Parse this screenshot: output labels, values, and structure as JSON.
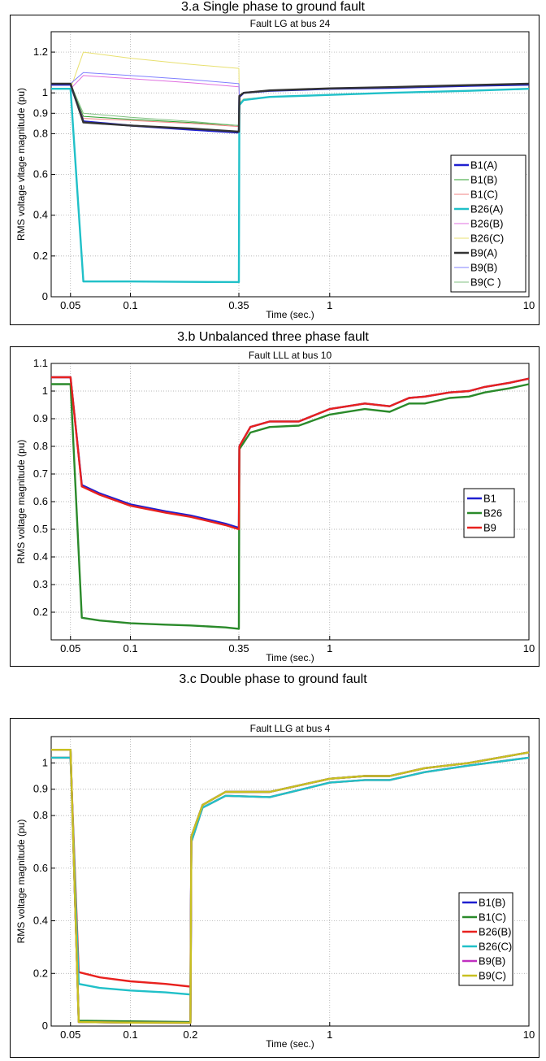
{
  "figure": {
    "caption_a": "3.a Single phase to ground fault",
    "caption_b": "3.b Unbalanced three phase fault",
    "caption_c": "3.c Double phase to ground fault"
  },
  "chart_data": [
    {
      "type": "line",
      "title": "Fault LG at bus 24",
      "xlabel": "Time (sec.)",
      "ylabel": "RMS voltage vltage magnitude (pu)",
      "xscale": "log",
      "xlim": [
        0.04,
        10
      ],
      "ylim": [
        0,
        1.3
      ],
      "xticks": [
        0.05,
        0.1,
        0.35,
        1,
        10
      ],
      "xtick_labels": [
        "0.05",
        "0.1",
        "0.35",
        "1",
        "10"
      ],
      "yticks": [
        0,
        0.2,
        0.4,
        0.6,
        0.8,
        0.9,
        1,
        1.2
      ],
      "ytick_labels": [
        "0",
        "0.2",
        "0.4",
        "0.6",
        "0.8",
        "0.9",
        "1",
        "1.2"
      ],
      "grid": true,
      "legend_position": "right",
      "series": [
        {
          "name": "B1(A)",
          "color": "#1f1fd0",
          "width": 2.4,
          "x": [
            0.04,
            0.05,
            0.058,
            0.1,
            0.2,
            0.35,
            0.352,
            0.37,
            0.5,
            1,
            2,
            5,
            10
          ],
          "y": [
            1.04,
            1.04,
            0.86,
            0.84,
            0.82,
            0.805,
            0.98,
            1.0,
            1.01,
            1.02,
            1.025,
            1.035,
            1.04
          ]
        },
        {
          "name": "B1(B)",
          "color": "#2ca02c",
          "width": 1,
          "x": [
            0.04,
            0.05,
            0.058,
            0.1,
            0.2,
            0.35,
            0.352,
            0.37,
            0.5,
            1,
            2,
            5,
            10
          ],
          "y": [
            1.04,
            1.04,
            0.885,
            0.87,
            0.855,
            0.84,
            0.98,
            1.0,
            1.01,
            1.02,
            1.025,
            1.035,
            1.04
          ]
        },
        {
          "name": "B1(C)",
          "color": "#f08080",
          "width": 1,
          "x": [
            0.04,
            0.05,
            0.058,
            0.1,
            0.2,
            0.35,
            0.352,
            0.37,
            0.5,
            1,
            2,
            5,
            10
          ],
          "y": [
            1.04,
            1.04,
            0.875,
            0.865,
            0.85,
            0.835,
            0.98,
            1.0,
            1.01,
            1.02,
            1.025,
            1.035,
            1.04
          ]
        },
        {
          "name": "B26(A)",
          "color": "#20c0c8",
          "width": 2.4,
          "x": [
            0.04,
            0.05,
            0.058,
            0.1,
            0.2,
            0.35,
            0.352,
            0.37,
            0.5,
            1,
            2,
            5,
            10
          ],
          "y": [
            1.02,
            1.02,
            0.075,
            0.075,
            0.073,
            0.072,
            0.94,
            0.965,
            0.98,
            0.99,
            1.0,
            1.01,
            1.02
          ]
        },
        {
          "name": "B26(B)",
          "color": "#e070e0",
          "width": 1,
          "x": [
            0.04,
            0.05,
            0.058,
            0.1,
            0.2,
            0.35,
            0.352,
            0.37,
            0.5,
            1,
            2,
            5,
            10
          ],
          "y": [
            1.02,
            1.02,
            1.085,
            1.07,
            1.05,
            1.03,
            0.95,
            0.97,
            0.98,
            0.99,
            1.0,
            1.01,
            1.02
          ]
        },
        {
          "name": "B26(C)",
          "color": "#e8e070",
          "width": 1,
          "x": [
            0.04,
            0.05,
            0.058,
            0.1,
            0.2,
            0.35,
            0.352,
            0.37,
            0.5,
            1,
            2,
            5,
            10
          ],
          "y": [
            1.02,
            1.02,
            1.2,
            1.17,
            1.14,
            1.12,
            0.95,
            0.97,
            0.98,
            0.99,
            1.0,
            1.01,
            1.02
          ]
        },
        {
          "name": "B9(A)",
          "color": "#333333",
          "width": 2.4,
          "x": [
            0.04,
            0.05,
            0.058,
            0.1,
            0.2,
            0.35,
            0.352,
            0.37,
            0.5,
            1,
            2,
            5,
            10
          ],
          "y": [
            1.045,
            1.045,
            0.855,
            0.84,
            0.825,
            0.81,
            0.985,
            1.0,
            1.012,
            1.022,
            1.028,
            1.038,
            1.045
          ]
        },
        {
          "name": "B9(B)",
          "color": "#8080ff",
          "width": 1,
          "x": [
            0.04,
            0.05,
            0.058,
            0.1,
            0.2,
            0.35,
            0.352,
            0.37,
            0.5,
            1,
            2,
            5,
            10
          ],
          "y": [
            1.045,
            1.045,
            1.1,
            1.085,
            1.065,
            1.045,
            0.985,
            1.0,
            1.012,
            1.022,
            1.028,
            1.038,
            1.045
          ]
        },
        {
          "name": "B9(C )",
          "color": "#80c080",
          "width": 1,
          "x": [
            0.04,
            0.05,
            0.058,
            0.1,
            0.2,
            0.35,
            0.352,
            0.37,
            0.5,
            1,
            2,
            5,
            10
          ],
          "y": [
            1.045,
            1.045,
            0.9,
            0.88,
            0.86,
            0.84,
            0.985,
            1.0,
            1.012,
            1.022,
            1.028,
            1.038,
            1.045
          ]
        }
      ]
    },
    {
      "type": "line",
      "title": "Fault LLL at bus 10",
      "xlabel": "Time (sec.)",
      "ylabel": "RMS voltage magnitude (pu)",
      "xscale": "log",
      "xlim": [
        0.04,
        10
      ],
      "ylim": [
        0.1,
        1.1
      ],
      "xticks": [
        0.05,
        0.1,
        0.35,
        1,
        10
      ],
      "xtick_labels": [
        "0.05",
        "0.1",
        "0.35",
        "1",
        "10"
      ],
      "yticks": [
        0.2,
        0.3,
        0.4,
        0.5,
        0.6,
        0.7,
        0.8,
        0.9,
        1,
        1.1
      ],
      "ytick_labels": [
        "0.2",
        "0.3",
        "0.4",
        "0.5",
        "0.6",
        "0.7",
        "0.8",
        "0.9",
        "1",
        "1.1"
      ],
      "grid": true,
      "legend_position": "right",
      "series": [
        {
          "name": "B1",
          "color": "#1f1fd0",
          "width": 2.4,
          "x": [
            0.04,
            0.05,
            0.057,
            0.07,
            0.1,
            0.15,
            0.2,
            0.3,
            0.35,
            0.352,
            0.4,
            0.5,
            0.7,
            1,
            1.5,
            2,
            2.5,
            3,
            4,
            5,
            6,
            8,
            10
          ],
          "y": [
            1.05,
            1.05,
            0.66,
            0.63,
            0.59,
            0.565,
            0.55,
            0.52,
            0.505,
            0.8,
            0.87,
            0.89,
            0.89,
            0.935,
            0.955,
            0.945,
            0.975,
            0.98,
            0.995,
            1.0,
            1.015,
            1.03,
            1.045
          ]
        },
        {
          "name": "B26",
          "color": "#2a8a2a",
          "width": 2.4,
          "x": [
            0.04,
            0.05,
            0.057,
            0.07,
            0.1,
            0.15,
            0.2,
            0.3,
            0.35,
            0.352,
            0.4,
            0.5,
            0.7,
            1,
            1.5,
            2,
            2.5,
            3,
            4,
            5,
            6,
            8,
            10
          ],
          "y": [
            1.025,
            1.025,
            0.18,
            0.17,
            0.16,
            0.155,
            0.152,
            0.145,
            0.14,
            0.79,
            0.85,
            0.87,
            0.875,
            0.915,
            0.935,
            0.925,
            0.955,
            0.955,
            0.975,
            0.98,
            0.995,
            1.01,
            1.025
          ]
        },
        {
          "name": "B9",
          "color": "#e8211e",
          "width": 2.4,
          "x": [
            0.04,
            0.05,
            0.057,
            0.07,
            0.1,
            0.15,
            0.2,
            0.3,
            0.35,
            0.352,
            0.4,
            0.5,
            0.7,
            1,
            1.5,
            2,
            2.5,
            3,
            4,
            5,
            6,
            8,
            10
          ],
          "y": [
            1.05,
            1.05,
            0.655,
            0.625,
            0.585,
            0.56,
            0.545,
            0.515,
            0.5,
            0.8,
            0.87,
            0.89,
            0.89,
            0.935,
            0.955,
            0.945,
            0.975,
            0.98,
            0.995,
            1.0,
            1.015,
            1.03,
            1.045
          ]
        }
      ]
    },
    {
      "type": "line",
      "title": "Fault LLG at bus 4",
      "xlabel": "Time (sec.)",
      "ylabel": "RMS voltage magnitude (pu)",
      "xscale": "log",
      "xlim": [
        0.04,
        10
      ],
      "ylim": [
        0,
        1.1
      ],
      "xticks": [
        0.05,
        0.1,
        0.2,
        1,
        10
      ],
      "xtick_labels": [
        "0.05",
        "0.1",
        "0.2",
        "1",
        "10"
      ],
      "yticks": [
        0,
        0.2,
        0.4,
        0.6,
        0.8,
        0.9,
        1
      ],
      "ytick_labels": [
        "0",
        "0.2",
        "0.4",
        "0.6",
        "0.8",
        "0.9",
        "1"
      ],
      "grid": true,
      "legend_position": "right",
      "series": [
        {
          "name": "B1(B)",
          "color": "#1f1fd0",
          "width": 2.4,
          "x": [
            0.04,
            0.05,
            0.055,
            0.1,
            0.2,
            0.202,
            0.23,
            0.3,
            0.5,
            1,
            1.5,
            2,
            3,
            5,
            10
          ],
          "y": [
            1.05,
            1.05,
            0.015,
            0.013,
            0.012,
            0.72,
            0.84,
            0.89,
            0.89,
            0.94,
            0.95,
            0.95,
            0.98,
            1.0,
            1.04
          ]
        },
        {
          "name": "B1(C)",
          "color": "#2a8a2a",
          "width": 2.4,
          "x": [
            0.04,
            0.05,
            0.055,
            0.1,
            0.2,
            0.202,
            0.23,
            0.3,
            0.5,
            1,
            1.5,
            2,
            3,
            5,
            10
          ],
          "y": [
            1.05,
            1.05,
            0.02,
            0.018,
            0.015,
            0.72,
            0.84,
            0.89,
            0.89,
            0.94,
            0.95,
            0.95,
            0.98,
            1.0,
            1.04
          ]
        },
        {
          "name": "B26(B)",
          "color": "#e8211e",
          "width": 2.4,
          "x": [
            0.04,
            0.05,
            0.055,
            0.07,
            0.1,
            0.15,
            0.2,
            0.202,
            0.23,
            0.3,
            0.5,
            1,
            1.5,
            2,
            3,
            5,
            10
          ],
          "y": [
            1.02,
            1.02,
            0.205,
            0.185,
            0.17,
            0.16,
            0.15,
            0.7,
            0.83,
            0.875,
            0.87,
            0.925,
            0.935,
            0.935,
            0.965,
            0.99,
            1.02
          ]
        },
        {
          "name": "B26(C)",
          "color": "#20c0c8",
          "width": 2.4,
          "x": [
            0.04,
            0.05,
            0.055,
            0.07,
            0.1,
            0.15,
            0.2,
            0.202,
            0.23,
            0.3,
            0.5,
            1,
            1.5,
            2,
            3,
            5,
            10
          ],
          "y": [
            1.02,
            1.02,
            0.16,
            0.145,
            0.135,
            0.128,
            0.12,
            0.7,
            0.83,
            0.875,
            0.87,
            0.925,
            0.935,
            0.935,
            0.965,
            0.99,
            1.02
          ]
        },
        {
          "name": "B9(B)",
          "color": "#c030c0",
          "width": 2.4,
          "x": [
            0.04,
            0.05,
            0.055,
            0.1,
            0.2,
            0.202,
            0.23,
            0.3,
            0.5,
            1,
            1.5,
            2,
            3,
            5,
            10
          ],
          "y": [
            1.05,
            1.05,
            0.015,
            0.013,
            0.012,
            0.72,
            0.84,
            0.89,
            0.89,
            0.94,
            0.95,
            0.95,
            0.98,
            1.0,
            1.04
          ]
        },
        {
          "name": "B9(C)",
          "color": "#c8c020",
          "width": 2.4,
          "x": [
            0.04,
            0.05,
            0.055,
            0.1,
            0.2,
            0.202,
            0.23,
            0.3,
            0.5,
            1,
            1.5,
            2,
            3,
            5,
            10
          ],
          "y": [
            1.05,
            1.05,
            0.015,
            0.013,
            0.012,
            0.72,
            0.84,
            0.89,
            0.89,
            0.94,
            0.95,
            0.95,
            0.98,
            1.0,
            1.04
          ]
        }
      ]
    }
  ]
}
